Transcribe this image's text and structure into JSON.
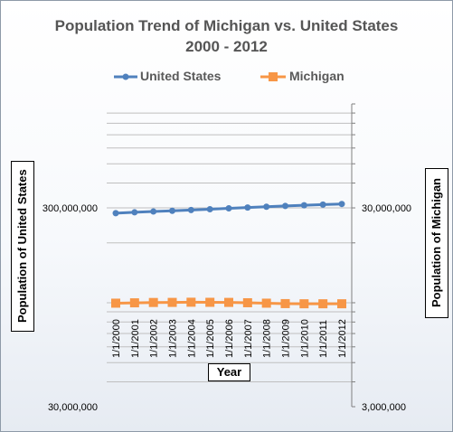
{
  "chart_data": {
    "type": "line",
    "title": "Population Trend of  Michigan vs. United States",
    "subtitle": "2000 - 2012",
    "xlabel": "Year",
    "ylabel_left": "Population of United States",
    "ylabel_right": "Population of  Michigan",
    "categories": [
      "1/1/2000",
      "1/1/2001",
      "1/1/2002",
      "1/1/2003",
      "1/1/2004",
      "1/1/2005",
      "1/1/2006",
      "1/1/2007",
      "1/1/2008",
      "1/1/2009",
      "1/1/2010",
      "1/1/2011",
      "1/1/2012"
    ],
    "series": [
      {
        "name": "United States",
        "axis": "left",
        "color": "#4f81bd",
        "marker": "circle",
        "values": [
          282200000,
          285000000,
          287600000,
          290100000,
          292800000,
          295500000,
          298400000,
          301200000,
          304100000,
          306800000,
          309300000,
          311600000,
          313900000
        ]
      },
      {
        "name": "Michigan",
        "axis": "right",
        "color": "#f79646",
        "marker": "square",
        "values": [
          9950000,
          9990000,
          10030000,
          10040000,
          10060000,
          10050000,
          10040000,
          10000000,
          9950000,
          9900000,
          9880000,
          9880000,
          9880000
        ]
      }
    ],
    "y_left": {
      "scale": "log",
      "range": [
        30000000,
        1000000000
      ],
      "tick_labels": [
        "30,000,000",
        "300,000,000"
      ]
    },
    "y_right": {
      "scale": "log",
      "range": [
        3000000,
        100000000
      ],
      "tick_labels": [
        "3,000,000",
        "30,000,000"
      ]
    },
    "gridlines": true,
    "legend_position": "top"
  }
}
